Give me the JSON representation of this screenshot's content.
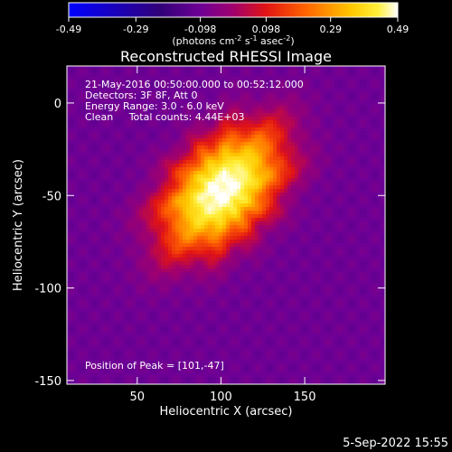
{
  "chart_data": {
    "type": "heatmap",
    "title": "Reconstructed RHESSI Image",
    "xlabel": "Heliocentric X (arcsec)",
    "ylabel": "Heliocentric Y (arcsec)",
    "xlim": [
      8,
      198
    ],
    "ylim": [
      -152,
      20
    ],
    "x_ticks": [
      50,
      100,
      150
    ],
    "y_ticks": [
      0,
      -50,
      -100,
      -150
    ],
    "colorbar": {
      "range": [
        -0.49,
        0.49
      ],
      "ticks": [
        "-0.49",
        "-0.29",
        "-0.098",
        "0.098",
        "0.29",
        "0.49"
      ],
      "units_prefix": "(photons cm",
      "units_sup1": "-2",
      "units_mid1": " s",
      "units_sup2": "-1",
      "units_mid2": " asec",
      "units_sup3": "-2",
      "units_suffix": ")"
    },
    "info_lines": [
      "21-May-2016 00:50:00.000 to 00:52:12.000",
      "Detectors: 3F 8F, Att 0",
      "Energy Range: 3.0 - 6.0 keV",
      "Clean     Total counts: 4.44E+03"
    ],
    "peak_label": "Position of Peak = [101,-47]",
    "peak": [
      101,
      -47
    ],
    "source_sigma_x_arcsec": 42,
    "source_sigma_y_arcsec": 25,
    "source_rotation_deg": -40
  },
  "footer": {
    "date": "5-Sep-2022 15:55"
  }
}
